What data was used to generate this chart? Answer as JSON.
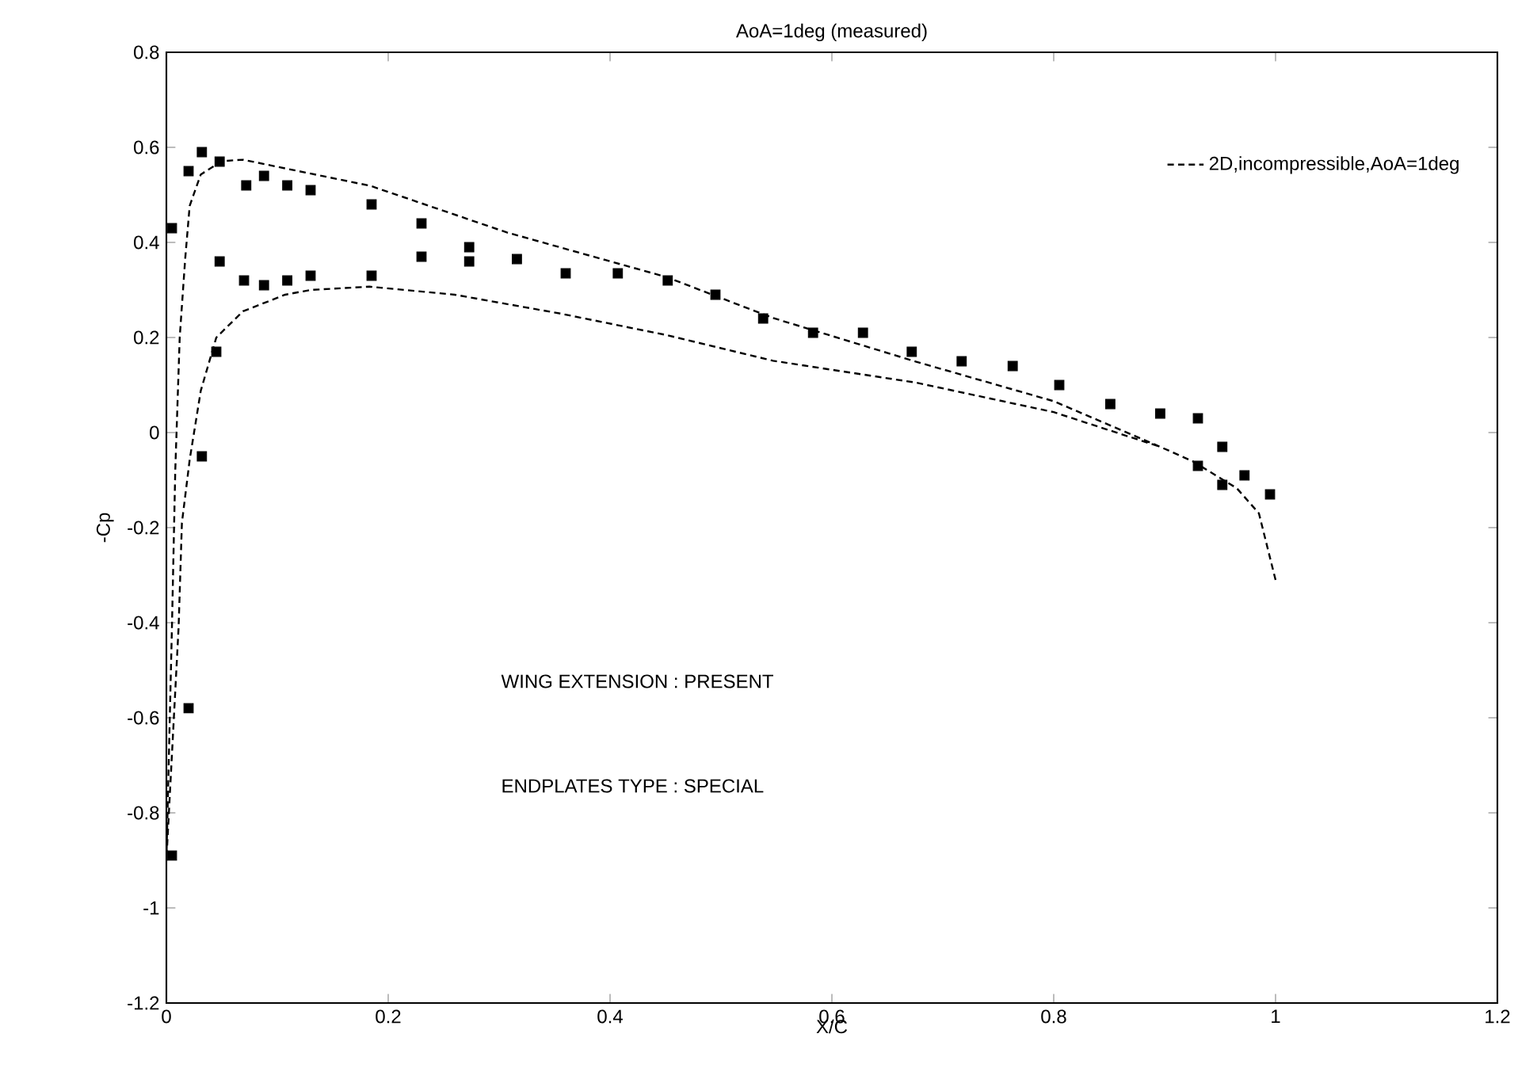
{
  "chart_data": {
    "type": "line",
    "title": "AoA=1deg (measured)",
    "xlabel": "X/C",
    "ylabel": "-Cp",
    "xlim": [
      0,
      1.2
    ],
    "xticks": [
      0,
      0.2,
      0.4,
      0.6,
      0.8,
      1,
      1.2
    ],
    "ylim": [
      -1.2,
      0.8
    ],
    "yticks": [
      -1.2,
      -1,
      -0.8,
      -0.6,
      -0.4,
      -0.2,
      0,
      0.2,
      0.4,
      0.6,
      0.8
    ],
    "legend": "top right",
    "grid": false,
    "annotations": [
      "WING EXTENSION : PRESENT",
      "ENDPLATES TYPE : SPECIAL"
    ],
    "series": [
      {
        "type": "scatter",
        "color": "#000000",
        "marker": "square",
        "x": [
          0.005,
          0.02,
          0.032,
          0.048,
          0.072,
          0.088,
          0.109,
          0.13,
          0.185,
          0.23,
          0.273,
          0.316,
          0.36,
          0.407,
          0.452,
          0.495,
          0.538,
          0.583,
          0.628,
          0.672,
          0.717,
          0.763,
          0.805,
          0.851,
          0.896,
          0.93,
          0.952,
          0.972,
          0.995,
          0.005,
          0.02,
          0.032,
          0.045,
          0.048,
          0.07,
          0.088,
          0.109,
          0.13,
          0.185,
          0.23,
          0.273,
          0.93,
          0.952
        ],
        "values": [
          0.43,
          0.55,
          0.59,
          0.57,
          0.52,
          0.54,
          0.52,
          0.51,
          0.48,
          0.44,
          0.39,
          0.365,
          0.335,
          0.335,
          0.32,
          0.29,
          0.24,
          0.21,
          0.21,
          0.17,
          0.15,
          0.14,
          0.1,
          0.06,
          0.04,
          0.03,
          -0.03,
          -0.09,
          -0.13,
          -0.89,
          -0.58,
          -0.05,
          0.17,
          0.36,
          0.32,
          0.31,
          0.32,
          0.33,
          0.33,
          0.37,
          0.36,
          -0.07,
          -0.11
        ]
      },
      {
        "name": "2D,incompressible,AoA=1deg",
        "color": "#000000",
        "line_style": "dashed",
        "marker": "none",
        "x": [
          1.0,
          0.985,
          0.965,
          0.925,
          0.896,
          0.8,
          0.676,
          0.547,
          0.451,
          0.307,
          0.184,
          0.069,
          0.05,
          0.031,
          0.021,
          0.017,
          0.012,
          0.008,
          0.005,
          0.0,
          0.011,
          0.014,
          0.021,
          0.031,
          0.045,
          0.069,
          0.107,
          0.13,
          0.183,
          0.26,
          0.356,
          0.451,
          0.547,
          0.676,
          0.8,
          0.896
        ],
        "values": [
          -0.31,
          -0.17,
          -0.117,
          -0.06,
          -0.03,
          0.066,
          0.149,
          0.241,
          0.327,
          0.421,
          0.519,
          0.574,
          0.571,
          0.543,
          0.477,
          0.367,
          0.2,
          -0.08,
          -0.41,
          -0.9,
          -0.41,
          -0.19,
          -0.057,
          0.088,
          0.2,
          0.255,
          0.29,
          0.3,
          0.307,
          0.29,
          0.25,
          0.205,
          0.151,
          0.105,
          0.043,
          -0.03
        ]
      }
    ]
  }
}
